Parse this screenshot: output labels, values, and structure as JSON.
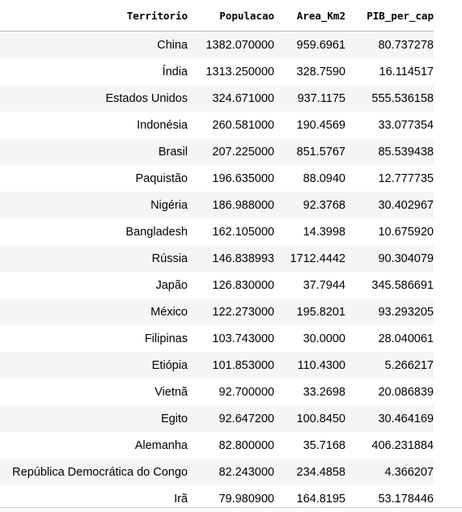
{
  "table": {
    "columns": [
      "Territorio",
      "Populacao",
      "Area_Km2",
      "PIB_per_cap"
    ],
    "rows": [
      [
        "China",
        "1382.070000",
        "959.6961",
        "80.737278"
      ],
      [
        "Índia",
        "1313.250000",
        "328.7590",
        "16.114517"
      ],
      [
        "Estados Unidos",
        "324.671000",
        "937.1175",
        "555.536158"
      ],
      [
        "Indonésia",
        "260.581000",
        "190.4569",
        "33.077354"
      ],
      [
        "Brasil",
        "207.225000",
        "851.5767",
        "85.539438"
      ],
      [
        "Paquistão",
        "196.635000",
        "88.0940",
        "12.777735"
      ],
      [
        "Nigéria",
        "186.988000",
        "92.3768",
        "30.402967"
      ],
      [
        "Bangladesh",
        "162.105000",
        "14.3998",
        "10.675920"
      ],
      [
        "Rússia",
        "146.838993",
        "1712.4442",
        "90.304079"
      ],
      [
        "Japão",
        "126.830000",
        "37.7944",
        "345.586691"
      ],
      [
        "México",
        "122.273000",
        "195.8201",
        "93.293205"
      ],
      [
        "Filipinas",
        "103.743000",
        "30.0000",
        "28.040061"
      ],
      [
        "Etiópia",
        "101.853000",
        "110.4300",
        "5.266217"
      ],
      [
        "Vietnã",
        "92.700000",
        "33.2698",
        "20.086839"
      ],
      [
        "Egito",
        "92.647200",
        "100.8450",
        "30.464169"
      ],
      [
        "Alemanha",
        "82.800000",
        "35.7168",
        "406.231884"
      ],
      [
        "República Democrática do Congo",
        "82.243000",
        "234.4858",
        "4.366207"
      ],
      [
        "Irã",
        "79.980900",
        "164.8195",
        "53.178446"
      ]
    ]
  }
}
